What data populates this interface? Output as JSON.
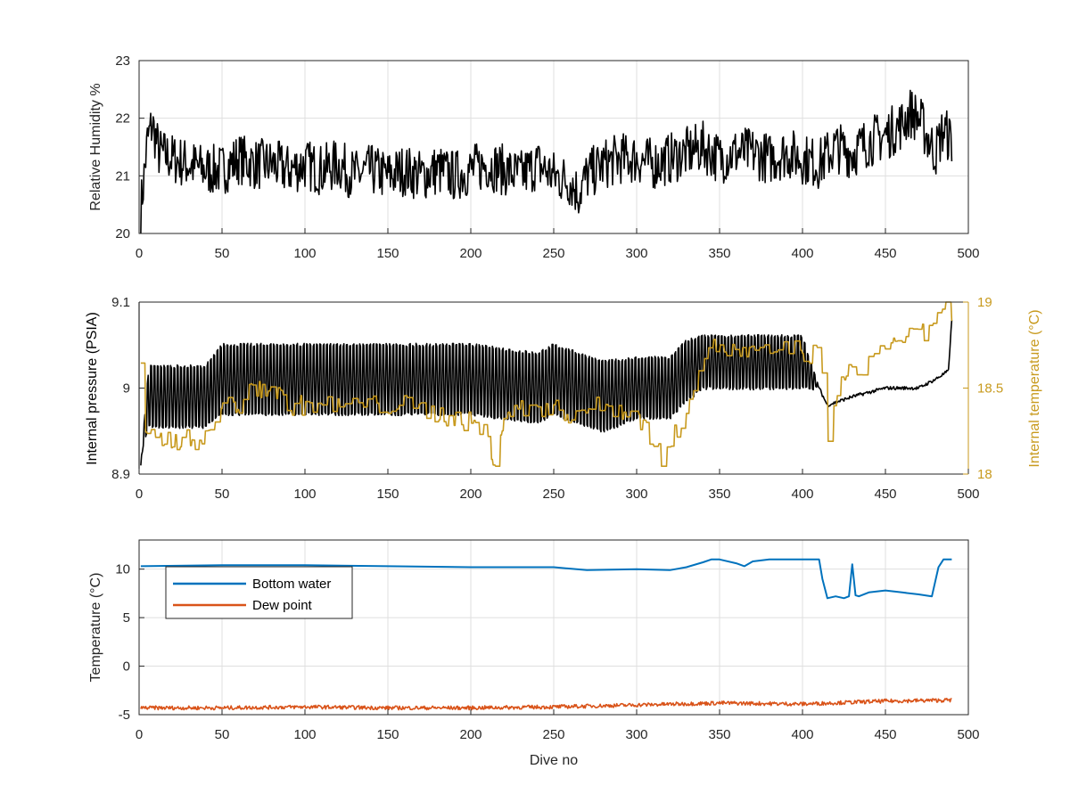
{
  "chart_data": [
    {
      "type": "line",
      "xlim": [
        0,
        500
      ],
      "ylim": [
        20,
        23
      ],
      "x_ticks": [
        "0",
        "50",
        "100",
        "150",
        "200",
        "250",
        "300",
        "350",
        "400",
        "450",
        "500"
      ],
      "y_ticks": [
        "20",
        "21",
        "22",
        "23"
      ],
      "xlabel": "",
      "ylabel": "Relative Humidity %",
      "grid": true,
      "series": [
        {
          "color": "#000000",
          "x": [
            1,
            3,
            5,
            8,
            12,
            20,
            30,
            40,
            50,
            60,
            70,
            80,
            90,
            100,
            110,
            120,
            130,
            140,
            150,
            160,
            170,
            180,
            190,
            200,
            210,
            220,
            230,
            240,
            250,
            260,
            265,
            270,
            280,
            290,
            300,
            310,
            320,
            330,
            340,
            350,
            360,
            370,
            380,
            390,
            400,
            410,
            420,
            430,
            440,
            450,
            460,
            465,
            470,
            480,
            485,
            490
          ],
          "y": [
            20.4,
            21.0,
            21.6,
            21.9,
            21.4,
            21.3,
            21.2,
            21.1,
            21.1,
            21.3,
            21.2,
            21.2,
            21.1,
            21.2,
            21.1,
            21.2,
            21.0,
            21.1,
            21.0,
            21.1,
            21.0,
            21.1,
            21.0,
            21.1,
            21.2,
            21.1,
            21.0,
            21.2,
            21.0,
            20.9,
            20.7,
            21.0,
            21.2,
            21.3,
            21.3,
            21.2,
            21.3,
            21.4,
            21.5,
            21.3,
            21.4,
            21.4,
            21.3,
            21.4,
            21.3,
            21.2,
            21.5,
            21.4,
            21.6,
            21.7,
            21.9,
            22.1,
            22.0,
            21.4,
            21.8,
            21.6
          ]
        }
      ]
    },
    {
      "type": "line",
      "xlim": [
        0,
        500
      ],
      "ylim": [
        8.9,
        9.1
      ],
      "y2lim": [
        18,
        19
      ],
      "x_ticks": [
        "0",
        "50",
        "100",
        "150",
        "200",
        "250",
        "300",
        "350",
        "400",
        "450",
        "500"
      ],
      "y_ticks": [
        "8.9",
        "9",
        "9.1"
      ],
      "y2_ticks": [
        "18",
        "18.5",
        "19"
      ],
      "xlabel": "",
      "ylabel": "Internal pressure (PSIA)",
      "y2label": "Internal temperature (°C)",
      "grid": false,
      "series": [
        {
          "axis": "left",
          "color": "#000000",
          "x": [
            1,
            3,
            6,
            10,
            20,
            40,
            50,
            60,
            80,
            100,
            120,
            150,
            200,
            240,
            250,
            280,
            300,
            320,
            330,
            340,
            360,
            380,
            400,
            410,
            415,
            430,
            450,
            470,
            480,
            488,
            490
          ],
          "y": [
            8.91,
            8.95,
            8.99,
            8.99,
            8.99,
            8.99,
            9.01,
            9.01,
            9.01,
            9.01,
            9.01,
            9.01,
            9.01,
            9.0,
            9.01,
            8.99,
            9.0,
            9.0,
            9.02,
            9.03,
            9.03,
            9.03,
            9.03,
            9.0,
            8.98,
            8.99,
            9.0,
            9.0,
            9.01,
            9.02,
            9.08
          ],
          "oscillation": [
            0,
            0.02,
            0.07,
            0.07,
            0.07,
            0.07,
            0.08,
            0.08,
            0.08,
            0.08,
            0.08,
            0.08,
            0.08,
            0.08,
            0.08,
            0.08,
            0.07,
            0.07,
            0.07,
            0.06,
            0.06,
            0.06,
            0.06,
            0,
            0,
            0,
            0,
            0,
            0,
            0,
            0
          ]
        },
        {
          "axis": "right",
          "color": "#C89A1E",
          "x": [
            1,
            3,
            5,
            10,
            20,
            30,
            40,
            45,
            50,
            60,
            70,
            80,
            90,
            100,
            110,
            120,
            140,
            160,
            180,
            200,
            210,
            213,
            220,
            240,
            260,
            280,
            300,
            310,
            315,
            320,
            330,
            340,
            350,
            360,
            370,
            380,
            390,
            400,
            410,
            413,
            415,
            420,
            430,
            440,
            450,
            460,
            470,
            480,
            485,
            490
          ],
          "y": [
            18.6,
            18.3,
            18.2,
            18.2,
            18.2,
            18.2,
            18.2,
            18.3,
            18.4,
            18.4,
            18.5,
            18.5,
            18.4,
            18.4,
            18.4,
            18.4,
            18.4,
            18.4,
            18.35,
            18.3,
            18.25,
            18.0,
            18.35,
            18.4,
            18.35,
            18.4,
            18.35,
            18.2,
            18.1,
            18.15,
            18.4,
            18.7,
            18.75,
            18.7,
            18.7,
            18.7,
            18.75,
            18.7,
            18.7,
            18.5,
            18.1,
            18.5,
            18.6,
            18.65,
            18.75,
            18.8,
            18.8,
            18.85,
            19.0,
            18.95
          ]
        }
      ]
    },
    {
      "type": "line",
      "xlim": [
        0,
        500
      ],
      "ylim": [
        -5,
        13
      ],
      "x_ticks": [
        "0",
        "50",
        "100",
        "150",
        "200",
        "250",
        "300",
        "350",
        "400",
        "450",
        "500"
      ],
      "y_ticks": [
        "-5",
        "0",
        "5",
        "10"
      ],
      "xlabel": "Dive no",
      "ylabel": "Temperature (°C)",
      "grid": true,
      "legend": "top-left",
      "series": [
        {
          "name": "Bottom water",
          "color": "#0072BD",
          "x": [
            1,
            50,
            100,
            150,
            200,
            250,
            270,
            300,
            320,
            330,
            340,
            345,
            350,
            360,
            365,
            370,
            380,
            395,
            410,
            412,
            415,
            420,
            425,
            428,
            430,
            432,
            434,
            440,
            450,
            460,
            470,
            478,
            482,
            485,
            490
          ],
          "y": [
            10.3,
            10.4,
            10.4,
            10.3,
            10.2,
            10.2,
            9.9,
            10.0,
            9.9,
            10.2,
            10.7,
            11.0,
            11.0,
            10.6,
            10.3,
            10.8,
            11.0,
            11.0,
            11.0,
            9.0,
            7.0,
            7.2,
            7.0,
            7.2,
            10.5,
            7.3,
            7.2,
            7.6,
            7.8,
            7.6,
            7.4,
            7.2,
            10.2,
            11.0,
            11.0
          ]
        },
        {
          "name": "Dew point",
          "color": "#D95319",
          "x": [
            1,
            50,
            100,
            150,
            200,
            250,
            300,
            350,
            400,
            450,
            490
          ],
          "y": [
            -4.3,
            -4.3,
            -4.2,
            -4.3,
            -4.3,
            -4.2,
            -4.0,
            -3.8,
            -3.9,
            -3.6,
            -3.5
          ],
          "noise": 0.2
        }
      ]
    }
  ]
}
